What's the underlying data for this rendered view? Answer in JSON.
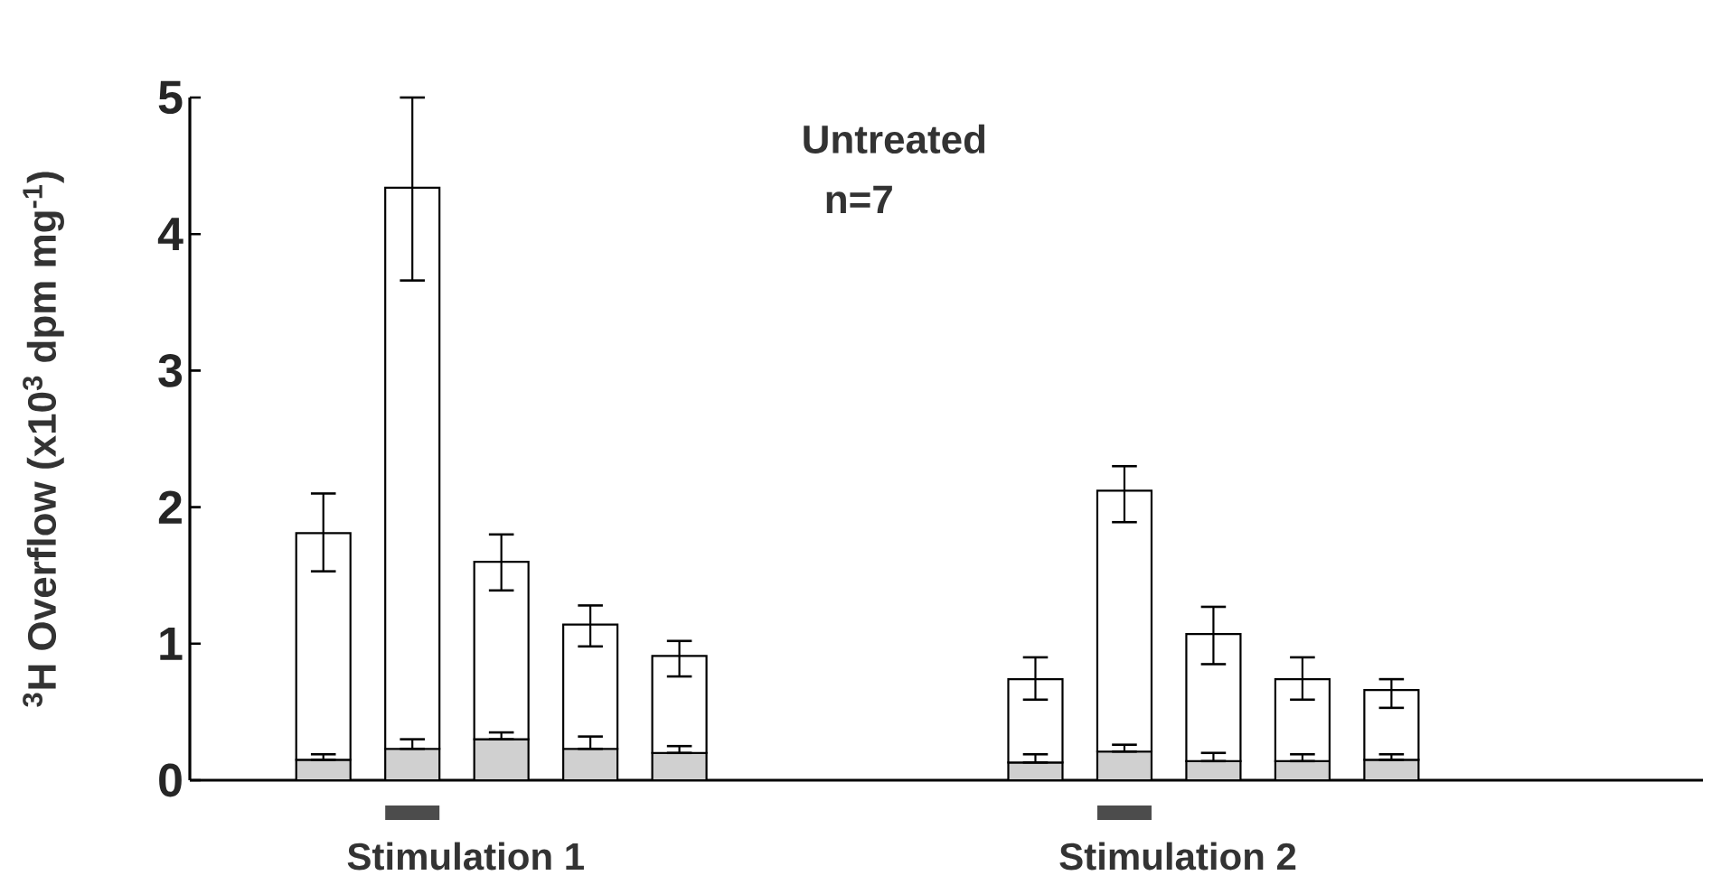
{
  "chart_data": {
    "type": "bar",
    "stacked": true,
    "title": "Untreated",
    "subtitle": "n=7",
    "ylabel": "$^{3}$H Overflow (x10$^{3}$ dpm mg$^{-1}$)",
    "categories": [
      null,
      null,
      null,
      null,
      null,
      null,
      null,
      null,
      null,
      null,
      null,
      null,
      null,
      null,
      null,
      null,
      null
    ],
    "series": [
      {
        "color": "#d0d0d0",
        "values": [
          null,
          0.15,
          0.23,
          0.3,
          0.23,
          0.2,
          null,
          null,
          null,
          0.13,
          0.21,
          0.14,
          0.14,
          0.15,
          null,
          null,
          null
        ],
        "errors": [
          null,
          [
            0.15,
            0.19
          ],
          [
            0.23,
            0.3
          ],
          [
            0.3,
            0.35
          ],
          [
            0.23,
            0.32
          ],
          [
            0.2,
            0.25
          ],
          null,
          null,
          null,
          [
            0.13,
            0.19
          ],
          [
            0.21,
            0.26
          ],
          [
            0.14,
            0.2
          ],
          [
            0.14,
            0.19
          ],
          [
            0.15,
            0.19
          ],
          null,
          null,
          null
        ]
      },
      {
        "color": "#ffffff",
        "values": [
          null,
          1.66,
          4.11,
          1.3,
          0.91,
          0.71,
          null,
          null,
          null,
          0.61,
          1.91,
          0.93,
          0.6,
          0.51,
          null,
          null,
          null
        ],
        "errors": [
          null,
          [
            1.53,
            2.1
          ],
          [
            3.66,
            5.0
          ],
          [
            1.39,
            1.8
          ],
          [
            0.98,
            1.28
          ],
          [
            0.76,
            1.02
          ],
          null,
          null,
          null,
          [
            0.59,
            0.9
          ],
          [
            1.89,
            2.3
          ],
          [
            0.85,
            1.27
          ],
          [
            0.59,
            0.9
          ],
          [
            0.53,
            0.74
          ],
          null,
          null,
          null
        ]
      }
    ],
    "ylim": [
      0,
      5
    ],
    "yticks": [
      0,
      1,
      2,
      3,
      4,
      5
    ],
    "annotations": [
      "Stimulation 1",
      "Stimulation 2"
    ],
    "grid": false
  }
}
